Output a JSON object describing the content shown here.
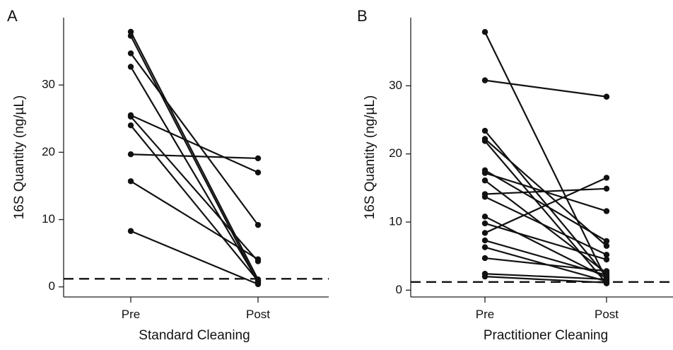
{
  "chart_data": [
    {
      "type": "line",
      "panel_label": "A",
      "xlabel": "Standard Cleaning",
      "ylabel": "16S Quantity (ng/µL)",
      "categories": [
        "Pre",
        "Post"
      ],
      "ylim": [
        -1.5,
        40
      ],
      "yticks": [
        0,
        10,
        20,
        30
      ],
      "reference_line": {
        "y": 1.2,
        "style": "dashed"
      },
      "series": [
        {
          "values": [
            37.9,
            1.1
          ]
        },
        {
          "values": [
            37.3,
            0.6
          ]
        },
        {
          "values": [
            34.7,
            9.2
          ]
        },
        {
          "values": [
            32.7,
            0.8
          ]
        },
        {
          "values": [
            25.5,
            17.0
          ]
        },
        {
          "values": [
            25.3,
            3.8
          ]
        },
        {
          "values": [
            24.0,
            0.9
          ]
        },
        {
          "values": [
            19.7,
            19.1
          ]
        },
        {
          "values": [
            15.7,
            4.1
          ]
        },
        {
          "values": [
            8.3,
            0.4
          ]
        }
      ]
    },
    {
      "type": "line",
      "panel_label": "B",
      "xlabel": "Practitioner Cleaning",
      "ylabel": "16S Quantity (ng/µL)",
      "categories": [
        "Pre",
        "Post"
      ],
      "ylim": [
        -1.0,
        40
      ],
      "yticks": [
        0,
        10,
        20,
        30
      ],
      "reference_line": {
        "y": 1.2,
        "style": "dashed"
      },
      "series": [
        {
          "values": [
            37.9,
            1.5
          ]
        },
        {
          "values": [
            30.8,
            28.4
          ]
        },
        {
          "values": [
            23.4,
            2.0
          ]
        },
        {
          "values": [
            22.2,
            6.5
          ]
        },
        {
          "values": [
            21.9,
            1.0
          ]
        },
        {
          "values": [
            17.6,
            7.2
          ]
        },
        {
          "values": [
            17.2,
            11.6
          ]
        },
        {
          "values": [
            16.1,
            2.5
          ]
        },
        {
          "values": [
            14.1,
            14.9
          ]
        },
        {
          "values": [
            13.7,
            5.2
          ]
        },
        {
          "values": [
            10.8,
            1.8
          ]
        },
        {
          "values": [
            9.8,
            4.5
          ]
        },
        {
          "values": [
            8.4,
            16.5
          ]
        },
        {
          "values": [
            7.3,
            2.2
          ]
        },
        {
          "values": [
            6.3,
            1.3
          ]
        },
        {
          "values": [
            4.7,
            2.8
          ]
        },
        {
          "values": [
            2.4,
            1.6
          ]
        },
        {
          "values": [
            2.0,
            1.1
          ]
        }
      ]
    }
  ]
}
